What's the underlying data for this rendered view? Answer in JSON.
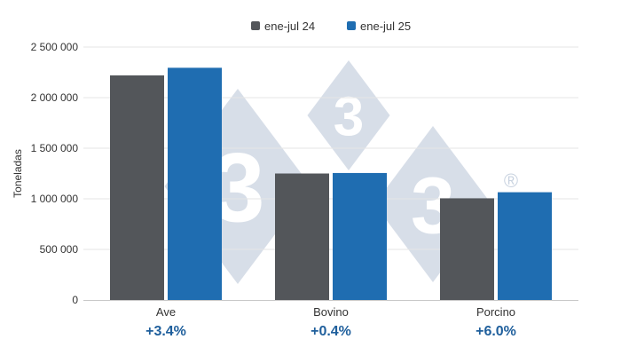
{
  "chart_data": {
    "type": "bar",
    "categories": [
      "Ave",
      "Bovino",
      "Porcino"
    ],
    "series": [
      {
        "name": "ene-jul 24",
        "color": "#53565a",
        "values": [
          2220000,
          1250000,
          1005000
        ]
      },
      {
        "name": "ene-jul 25",
        "color": "#1f6db1",
        "values": [
          2295000,
          1255000,
          1065000
        ]
      }
    ],
    "changes": [
      "+3.4%",
      "+0.4%",
      "+6.0%"
    ],
    "change_color": "#1f5f9c",
    "ylabel": "Toneladas",
    "yticks": [
      0,
      500000,
      1000000,
      1500000,
      2000000,
      2500000
    ],
    "ytick_labels": [
      "0",
      "500 000",
      "1 000 000",
      "1 500 000",
      "2 000 000",
      "2 500 000"
    ],
    "ylim": [
      0,
      2500000
    ],
    "grid": true,
    "legend_position": "top-center",
    "watermark": {
      "text": "333",
      "mark": "®",
      "color": "#c9d3e0"
    }
  }
}
